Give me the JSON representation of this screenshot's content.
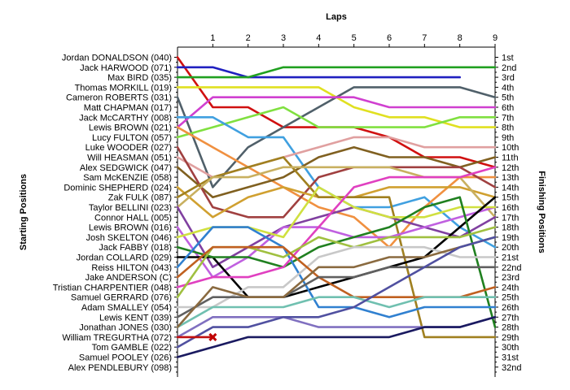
{
  "chart_data": {
    "type": "line",
    "title": "",
    "xlabel": "Laps",
    "ylabel_left": "Starting Positions",
    "ylabel_right": "Finishing Positions",
    "x": [
      0,
      1,
      2,
      3,
      4,
      5,
      6,
      7,
      8,
      9
    ],
    "xticks": [
      "1",
      "2",
      "3",
      "4",
      "5",
      "6",
      "7",
      "8",
      "9"
    ],
    "ylim": [
      1,
      33
    ],
    "inverted_y": true,
    "grid": false,
    "starting_labels": [
      "Jordan DONALDSON (040)",
      "Jack HARWOOD (071)",
      "Max BIRD (035)",
      "Thomas MORKILL (019)",
      "Cameron ROBERTS (031)",
      "Matt CHAPMAN (017)",
      "Jack McCARTHY (008)",
      "Lewis BROWN (021)",
      "Lucy FULTON (057)",
      "Luke WOODER (027)",
      "Will HEASMAN (051)",
      "Alex SEDGWICK (047)",
      "Sam McKENZIE (058)",
      "Dominic SHEPHERD (024)",
      "Zak FULK (087)",
      "Taylor BELLINI (023)",
      "Connor HALL (005)",
      "Lewis BROWN (016)",
      "Josh SKELTON (046)",
      "Jack FABBY (018)",
      "Jordan COLLARD (029)",
      "Reiss HILTON (043)",
      "Jake ANDERSON (C)",
      "Tristian CHARPENTIER (048)",
      "Samuel GERRARD (076)",
      "Adam SMALLEY (054)",
      "Lewis KENT (039)",
      "Jonathan JONES (030)",
      "William TREGURTHA (072)",
      "Tom GAMBLE (022)",
      "Samuel POOLEY (026)",
      "Alex PENDLEBURY (098)"
    ],
    "finishing_labels": [
      "1st",
      "2nd",
      "3rd",
      "4th",
      "5th",
      "6th",
      "7th",
      "8th",
      "9th",
      "10th",
      "11th",
      "12th",
      "13th",
      "14th",
      "15th",
      "16th",
      "17th",
      "18th",
      "19th",
      "20th",
      "21st",
      "22nd",
      "23rd",
      "24th",
      "25th",
      "26th",
      "27th",
      "28th",
      "29th",
      "30th",
      "31st",
      "32nd"
    ],
    "series": [
      {
        "color": "#d01010",
        "values": [
          1,
          6,
          6,
          8,
          8,
          8,
          9,
          11,
          11,
          12
        ]
      },
      {
        "color": "#2020c0",
        "values": [
          2,
          2,
          3,
          3,
          3,
          3,
          3,
          3,
          3,
          null
        ]
      },
      {
        "color": "#20a020",
        "values": [
          3,
          3,
          3,
          2,
          2,
          2,
          2,
          2,
          2,
          2
        ]
      },
      {
        "color": "#e0e020",
        "values": [
          4,
          4,
          4,
          4,
          4,
          6,
          7,
          7,
          8,
          8
        ]
      },
      {
        "color": "#50606a",
        "values": [
          5,
          14,
          10,
          8,
          6,
          4,
          4,
          4,
          4,
          5
        ]
      },
      {
        "color": "#d040d0",
        "values": [
          8,
          5,
          5,
          5,
          5,
          5,
          6,
          6,
          6,
          6
        ]
      },
      {
        "color": "#80e040",
        "values": [
          9,
          8,
          7,
          6,
          8,
          8,
          8,
          8,
          7,
          7
        ]
      },
      {
        "color": "#40a0e0",
        "values": [
          7,
          7,
          9,
          9,
          14,
          16,
          16,
          15,
          18,
          20
        ]
      },
      {
        "color": "#f09040",
        "values": [
          8,
          10,
          12,
          14,
          16,
          17,
          20,
          16,
          13,
          13
        ]
      },
      {
        "color": "#806020",
        "values": [
          12,
          15,
          14,
          13,
          11,
          10,
          11,
          11,
          12,
          11
        ]
      },
      {
        "color": "#e0a0a0",
        "values": [
          11,
          13,
          12,
          11,
          10,
          9,
          9,
          10,
          10,
          10
        ]
      },
      {
        "color": "#a04040",
        "values": [
          10,
          16,
          17,
          17,
          13,
          12,
          12,
          12,
          12,
          14
        ]
      },
      {
        "color": "#d0a030",
        "values": [
          14,
          17,
          15,
          14,
          15,
          15,
          14,
          14,
          14,
          15
        ]
      },
      {
        "color": "#a08020",
        "values": [
          15,
          13,
          12,
          11,
          15,
          15,
          15,
          29,
          29,
          29
        ]
      },
      {
        "color": "#c8b060",
        "values": [
          16,
          13,
          13,
          12,
          12,
          12,
          12,
          13,
          13,
          17
        ]
      },
      {
        "color": "#8040a0",
        "values": [
          16,
          22,
          20,
          18,
          17,
          16,
          17,
          18,
          19,
          17
        ]
      },
      {
        "color": "#c060e0",
        "values": [
          18,
          23,
          21,
          18,
          18,
          19,
          19,
          18,
          17,
          16
        ]
      },
      {
        "color": "#d0e040",
        "values": [
          19,
          18,
          18,
          19,
          14,
          16,
          17,
          17,
          16,
          16
        ]
      },
      {
        "color": "#000000",
        "values": [
          21,
          21,
          25,
          25,
          24,
          23,
          22,
          21,
          18,
          15
        ]
      },
      {
        "color": "#208020",
        "values": [
          20,
          21,
          21,
          22,
          20,
          19,
          18,
          16,
          15,
          28
        ]
      },
      {
        "color": "#3080d0",
        "values": [
          22,
          18,
          18,
          20,
          26,
          26,
          27,
          26,
          26,
          26
        ]
      },
      {
        "color": "#e040c0",
        "values": [
          24,
          23,
          23,
          22,
          18,
          14,
          13,
          13,
          13,
          12
        ]
      },
      {
        "color": "#a0c040",
        "values": [
          25,
          20,
          20,
          21,
          19,
          20,
          19,
          19,
          19,
          18
        ]
      },
      {
        "color": "#c8c8c8",
        "values": [
          26,
          26,
          24,
          24,
          21,
          20,
          20,
          20,
          21,
          21
        ]
      },
      {
        "color": "#c06020",
        "values": [
          23,
          20,
          20,
          20,
          23,
          25,
          25,
          25,
          25,
          24
        ]
      },
      {
        "color": "#606060",
        "values": [
          27,
          25,
          25,
          25,
          23,
          23,
          22,
          22,
          22,
          22
        ]
      },
      {
        "color": "#70c0b0",
        "values": [
          28,
          26,
          26,
          26,
          25,
          25,
          26,
          25,
          25,
          25
        ]
      },
      {
        "color": "#8a6a40",
        "values": [
          28,
          24,
          25,
          25,
          22,
          22,
          21,
          21,
          20,
          19
        ]
      },
      {
        "color": "#8070c0",
        "values": [
          29,
          27,
          27,
          27,
          28,
          28,
          28,
          28,
          28,
          27
        ]
      },
      {
        "color": "#5050a0",
        "values": [
          30,
          28,
          28,
          27,
          27,
          26,
          24,
          22,
          20,
          19
        ]
      },
      {
        "color": "#1a1a60",
        "values": [
          31,
          30,
          29,
          29,
          29,
          29,
          29,
          28,
          28,
          27
        ]
      },
      {
        "color": "#c01010",
        "values": [
          29,
          29,
          null,
          null,
          null,
          null,
          null,
          null,
          null,
          null
        ]
      }
    ]
  }
}
